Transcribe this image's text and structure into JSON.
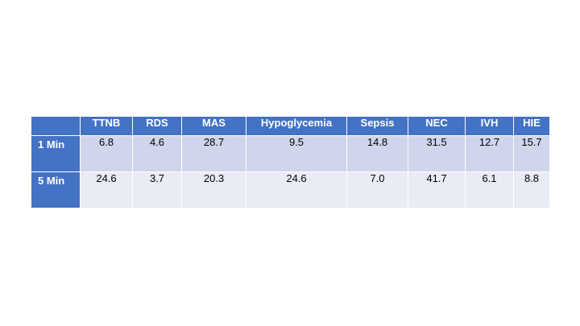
{
  "table": {
    "corner": "",
    "columns": [
      "TTNB",
      "RDS",
      "MAS",
      "Hypoglycemia",
      "Sepsis",
      "NEC",
      "IVH",
      "HIE"
    ],
    "rows": [
      {
        "label": "1 Min",
        "values": [
          "6.8",
          "4.6",
          "28.7",
          "9.5",
          "14.8",
          "31.5",
          "12.7",
          "15.7"
        ]
      },
      {
        "label": "5 Min",
        "values": [
          "24.6",
          "3.7",
          "20.3",
          "24.6",
          "7.0",
          "41.7",
          "6.1",
          "8.8"
        ]
      }
    ]
  },
  "colors": {
    "header_bg": "#4472c4",
    "row_odd_bg": "#cfd5ea",
    "row_even_bg": "#e9ebf5",
    "header_text": "#ffffff"
  }
}
